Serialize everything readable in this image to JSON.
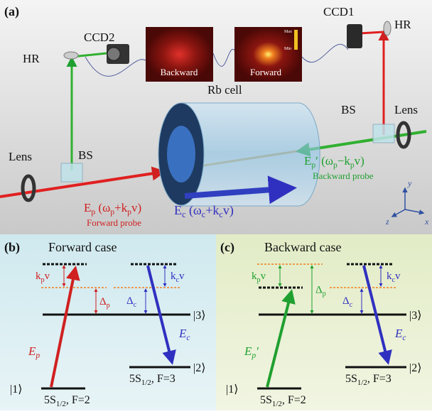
{
  "panel_a": {
    "label": "(a)",
    "ccd2": "CCD2",
    "hr_left": "HR",
    "ccd1": "CCD1",
    "hr_right": "HR",
    "image_backward": "Backward",
    "image_forward": "Forward",
    "colorbar_max": "Max",
    "colorbar_min": "Min",
    "rb_cell": "Rb cell",
    "lens_left": "Lens",
    "bs_left": "BS",
    "bs_right": "BS",
    "lens_right": "Lens",
    "forward_field": [
      [
        "E",
        "p"
      ],
      [
        " (ω",
        "p"
      ],
      [
        "+k",
        "p"
      ],
      [
        "v)"
      ]
    ],
    "forward_probe": "Forward probe",
    "backward_field": [
      [
        "E",
        "p"
      ],
      [
        "′ (ω",
        "p"
      ],
      [
        "−k",
        "p"
      ],
      [
        "v)"
      ]
    ],
    "backward_probe": "Backward probe",
    "coupling_field": [
      [
        "E",
        "c"
      ],
      [
        " (ω",
        "c"
      ],
      [
        "+k",
        "c"
      ],
      [
        "v)"
      ]
    ],
    "axis_x": "x",
    "axis_y": "y",
    "axis_z": "z"
  },
  "panel_b": {
    "label": "(b)",
    "title": "Forward case",
    "probe_shift": [
      [
        "k",
        "p"
      ],
      [
        "v"
      ]
    ],
    "probe_detuning": [
      [
        "Δ",
        "p"
      ]
    ],
    "coupling_shift": [
      [
        "k",
        "c"
      ],
      [
        "v"
      ]
    ],
    "coupling_detuning": [
      [
        "Δ",
        "c"
      ]
    ],
    "ket3": "|3⟩",
    "ket2": "|2⟩",
    "ket1": "|1⟩",
    "probe_field": [
      [
        "E",
        "p"
      ]
    ],
    "coupling_field": [
      [
        "E",
        "c"
      ]
    ],
    "ground_left": [
      [
        "5S",
        "1/2"
      ],
      [
        ", F=2"
      ]
    ],
    "ground_right": [
      [
        "5S",
        "1/2"
      ],
      [
        ", F=3"
      ]
    ]
  },
  "panel_c": {
    "label": "(c)",
    "title": "Backward case",
    "probe_shift": [
      [
        "k",
        "p"
      ],
      [
        "v"
      ]
    ],
    "probe_detuning": [
      [
        "Δ",
        "p"
      ]
    ],
    "coupling_shift": [
      [
        "k",
        "c"
      ],
      [
        "v"
      ]
    ],
    "coupling_detuning": [
      [
        "Δ",
        "c"
      ]
    ],
    "ket3": "|3⟩",
    "ket2": "|2⟩",
    "ket1": "|1⟩",
    "probe_field": [
      [
        "E",
        "p"
      ],
      [
        "′"
      ]
    ],
    "coupling_field": [
      [
        "E",
        "c"
      ]
    ],
    "ground_left": [
      [
        "5S",
        "1/2"
      ],
      [
        ", F=2"
      ]
    ],
    "ground_right": [
      [
        "5S",
        "1/2"
      ],
      [
        ", F=3"
      ]
    ]
  }
}
